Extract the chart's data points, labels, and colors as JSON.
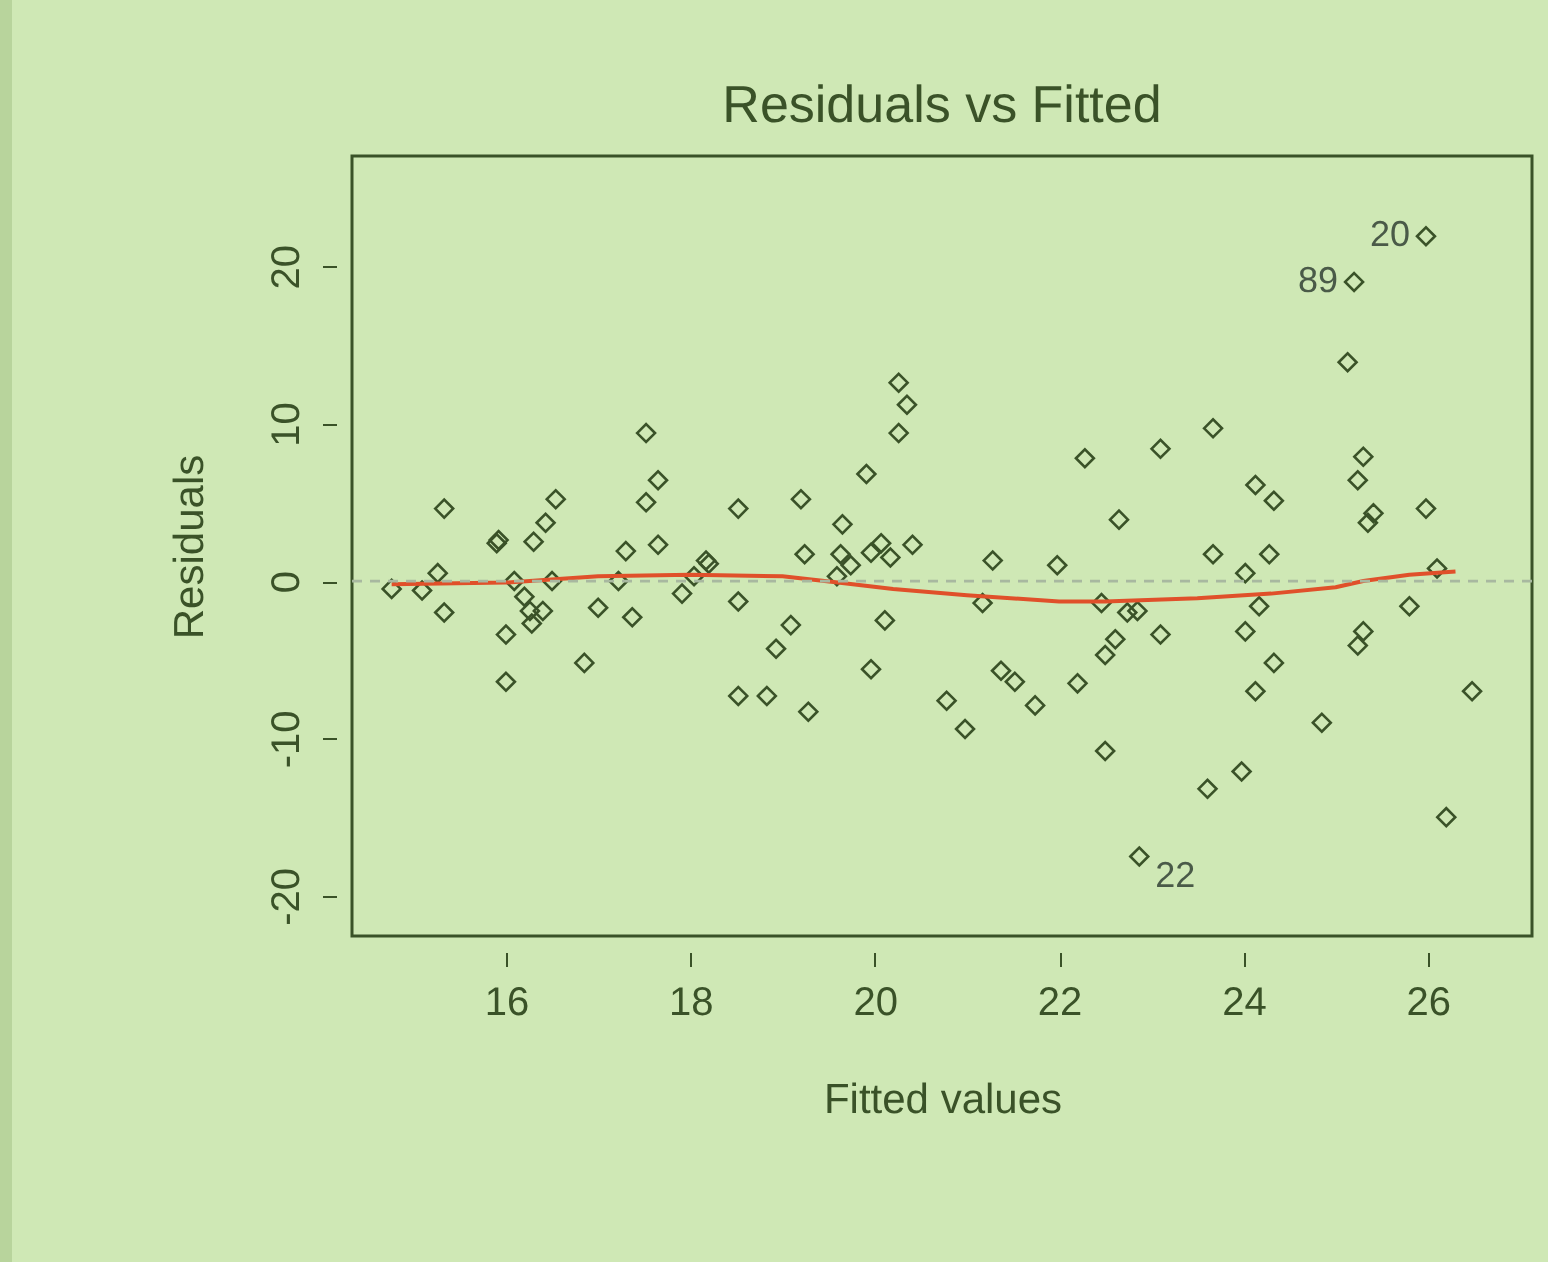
{
  "chart_data": {
    "type": "scatter",
    "title": "Residuals vs Fitted",
    "xlabel": "Fitted values",
    "ylabel": "Residuals",
    "xlim": [
      14.33,
      27.13
    ],
    "ylim": [
      -22.55,
      27.0
    ],
    "xticks": [
      16,
      18,
      20,
      22,
      24,
      26
    ],
    "yticks": [
      -20,
      -10,
      0,
      10,
      20
    ],
    "grid": false,
    "series": [
      {
        "marker": "diamond",
        "color": "#3a5228",
        "x": [
          14.76,
          15.09,
          15.26,
          15.33,
          15.33,
          15.9,
          15.92,
          16.0,
          16.0,
          16.09,
          16.2,
          16.26,
          16.28,
          16.4,
          16.3,
          16.43,
          16.54,
          16.5,
          16.85,
          17.0,
          17.22,
          17.3,
          17.37,
          17.52,
          17.52,
          17.65,
          17.65,
          17.91,
          18.04,
          18.17,
          18.2,
          18.52,
          18.52,
          18.52,
          18.83,
          18.93,
          19.09,
          19.2,
          19.24,
          19.28,
          19.59,
          19.63,
          19.65,
          19.74,
          19.91,
          19.96,
          19.96,
          20.07,
          20.11,
          20.17,
          20.26,
          20.35,
          20.26,
          20.41,
          20.78,
          20.98,
          21.17,
          21.28,
          21.37,
          21.52,
          21.74,
          21.98,
          22.2,
          22.28,
          22.46,
          22.5,
          22.5,
          22.61,
          22.65,
          22.74,
          22.87,
          22.85,
          23.1,
          23.1,
          23.61,
          23.67,
          23.67,
          23.98,
          24.02,
          24.02,
          24.13,
          24.13,
          24.17,
          24.28,
          24.33,
          24.33,
          24.85,
          25.13,
          25.2,
          25.24,
          25.3,
          25.24,
          25.3,
          25.35,
          25.41,
          25.8,
          25.98,
          25.98,
          26.1,
          26.2,
          26.48
        ],
        "values": [
          -0.5,
          -0.6,
          0.5,
          4.6,
          -2.0,
          2.4,
          2.6,
          -3.4,
          -6.4,
          0,
          -1.0,
          -1.9,
          -2.7,
          -1.9,
          2.5,
          3.7,
          5.2,
          0,
          -5.2,
          -1.7,
          0.0,
          1.9,
          -2.3,
          9.4,
          5.0,
          6.4,
          2.3,
          -0.8,
          0.3,
          1.3,
          1.1,
          4.6,
          -1.3,
          -7.3,
          -7.3,
          -4.3,
          -2.8,
          5.2,
          1.7,
          -8.3,
          0.3,
          1.7,
          3.6,
          1.0,
          6.8,
          1.8,
          -5.6,
          2.4,
          -2.5,
          1.5,
          12.6,
          11.2,
          9.4,
          2.3,
          -7.6,
          -9.4,
          -1.4,
          1.3,
          -5.7,
          -6.4,
          -7.9,
          1.0,
          -6.5,
          7.8,
          -1.4,
          -4.7,
          -10.8,
          -3.7,
          3.9,
          -2.0,
          -17.5,
          -1.9,
          -3.4,
          8.4,
          -13.2,
          9.7,
          1.7,
          -12.1,
          0.5,
          -3.2,
          -7.0,
          6.1,
          -1.6,
          1.7,
          5.1,
          -5.2,
          -9.0,
          13.9,
          19.0,
          6.4,
          7.9,
          -4.1,
          -3.2,
          3.7,
          4.3,
          -1.6,
          21.9,
          4.6,
          0.8,
          -15.0,
          -7.0
        ]
      },
      {
        "type": "line",
        "color": "#e0502a",
        "x": [
          14.76,
          16.0,
          17.0,
          18.0,
          19.0,
          19.6,
          20.2,
          21.0,
          22.0,
          22.5,
          23.5,
          24.3,
          25.0,
          25.3,
          25.8,
          26.3
        ],
        "values": [
          -0.2,
          -0.1,
          0.3,
          0.4,
          0.3,
          -0.1,
          -0.5,
          -0.9,
          -1.3,
          -1.3,
          -1.1,
          -0.8,
          -0.4,
          0.0,
          0.4,
          0.6
        ]
      }
    ],
    "ref_lines": [
      {
        "axis": "y",
        "value": 0,
        "color": "#a8b8a0",
        "line_style": "dashed"
      }
    ],
    "annotations": [
      {
        "text": "20",
        "x": 25.98,
        "y": 21.9
      },
      {
        "text": "89",
        "x": 25.2,
        "y": 19.0
      },
      {
        "text": "22",
        "x": 22.87,
        "y": -17.5
      }
    ]
  }
}
